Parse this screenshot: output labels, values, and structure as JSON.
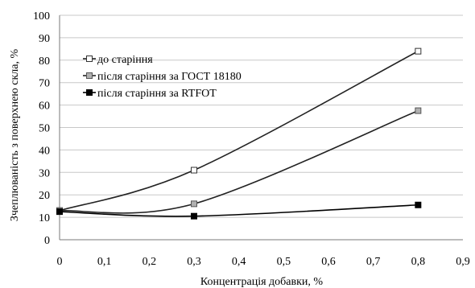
{
  "chart_data": {
    "type": "line",
    "title": "",
    "xlabel": "Концентрація добавки, %",
    "ylabel": "Зчеплюваність з поверхнею скла, %",
    "xlim": [
      0,
      0.9
    ],
    "ylim": [
      0,
      100
    ],
    "x_ticks": [
      "0",
      "0,1",
      "0,2",
      "0,3",
      "0,4",
      "0,5",
      "0,6",
      "0,7",
      "0,8",
      "0,9"
    ],
    "y_ticks": [
      "0",
      "10",
      "20",
      "30",
      "40",
      "50",
      "60",
      "70",
      "80",
      "90",
      "100"
    ],
    "grid": "horizontal",
    "legend_position": "left-center",
    "x": [
      0,
      0.3,
      0.8
    ],
    "series": [
      {
        "name": "до старіння",
        "values": [
          13,
          31,
          84
        ],
        "marker": "open-square",
        "color": "#222222"
      },
      {
        "name": "після старіння за ГОСТ 18180",
        "values": [
          13,
          16,
          57.5
        ],
        "marker": "grey-square",
        "color": "#222222"
      },
      {
        "name": "після старіння за RTFOT",
        "values": [
          12.5,
          10.5,
          15.5
        ],
        "marker": "filled-square",
        "color": "#000000"
      }
    ]
  }
}
